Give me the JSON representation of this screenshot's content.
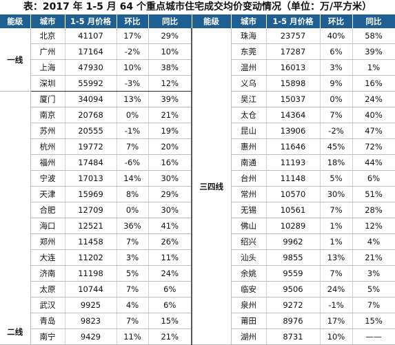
{
  "title": "表：2017 年 1-5 月 64 个重点城市住宅成交均价变动情况（单位：万/平方米）",
  "headers": [
    "能级",
    "城市",
    "1-5 月价格",
    "环比",
    "同比",
    "能级",
    "城市",
    "1-5 月价格",
    "环比",
    "同比"
  ],
  "tiers": {
    "tier1": "一线",
    "tier2": "二线",
    "tier34": "三四线"
  },
  "left_rows": [
    {
      "city": "北京",
      "price": "41107",
      "mom": "17%",
      "yoy": "29%"
    },
    {
      "city": "广州",
      "price": "17164",
      "mom": "-2%",
      "yoy": "10%"
    },
    {
      "city": "上海",
      "price": "47930",
      "mom": "10%",
      "yoy": "38%"
    },
    {
      "city": "深圳",
      "price": "55992",
      "mom": "-3%",
      "yoy": "12%"
    },
    {
      "city": "厦门",
      "price": "34094",
      "mom": "13%",
      "yoy": "39%"
    },
    {
      "city": "南京",
      "price": "20768",
      "mom": "0%",
      "yoy": "21%"
    },
    {
      "city": "苏州",
      "price": "20555",
      "mom": "-1%",
      "yoy": "19%"
    },
    {
      "city": "杭州",
      "price": "19772",
      "mom": "7%",
      "yoy": "20%"
    },
    {
      "city": "福州",
      "price": "17484",
      "mom": "-6%",
      "yoy": "16%"
    },
    {
      "city": "宁波",
      "price": "17013",
      "mom": "14%",
      "yoy": "30%"
    },
    {
      "city": "天津",
      "price": "15969",
      "mom": "8%",
      "yoy": "29%"
    },
    {
      "city": "合肥",
      "price": "12709",
      "mom": "0%",
      "yoy": "30%"
    },
    {
      "city": "海口",
      "price": "12521",
      "mom": "36%",
      "yoy": "41%"
    },
    {
      "city": "郑州",
      "price": "11458",
      "mom": "7%",
      "yoy": "26%"
    },
    {
      "city": "大连",
      "price": "11202",
      "mom": "3%",
      "yoy": "11%"
    },
    {
      "city": "济南",
      "price": "11198",
      "mom": "5%",
      "yoy": "24%"
    },
    {
      "city": "太原",
      "price": "10744",
      "mom": "7%",
      "yoy": "6%"
    },
    {
      "city": "武汉",
      "price": "9925",
      "mom": "4%",
      "yoy": "6%"
    },
    {
      "city": "青岛",
      "price": "9823",
      "mom": "7%",
      "yoy": "15%"
    },
    {
      "city": "南宁",
      "price": "9429",
      "mom": "11%",
      "yoy": "21%"
    }
  ],
  "right_rows": [
    {
      "city": "珠海",
      "price": "23757",
      "mom": "40%",
      "yoy": "58%"
    },
    {
      "city": "东莞",
      "price": "17287",
      "mom": "6%",
      "yoy": "39%"
    },
    {
      "city": "温州",
      "price": "16013",
      "mom": "3%",
      "yoy": "1%"
    },
    {
      "city": "义乌",
      "price": "15898",
      "mom": "9%",
      "yoy": "16%"
    },
    {
      "city": "吴江",
      "price": "15037",
      "mom": "0%",
      "yoy": "24%"
    },
    {
      "city": "太仓",
      "price": "14364",
      "mom": "7%",
      "yoy": "40%"
    },
    {
      "city": "昆山",
      "price": "13906",
      "mom": "-2%",
      "yoy": "47%"
    },
    {
      "city": "惠州",
      "price": "11646",
      "mom": "45%",
      "yoy": "72%"
    },
    {
      "city": "南通",
      "price": "11193",
      "mom": "18%",
      "yoy": "44%"
    },
    {
      "city": "台州",
      "price": "11148",
      "mom": "5%",
      "yoy": "6%"
    },
    {
      "city": "常州",
      "price": "10570",
      "mom": "30%",
      "yoy": "51%"
    },
    {
      "city": "无锡",
      "price": "10561",
      "mom": "7%",
      "yoy": "28%"
    },
    {
      "city": "佛山",
      "price": "10289",
      "mom": "1%",
      "yoy": "12%"
    },
    {
      "city": "绍兴",
      "price": "9962",
      "mom": "1%",
      "yoy": "4%"
    },
    {
      "city": "汕头",
      "price": "9855",
      "mom": "13%",
      "yoy": "21%"
    },
    {
      "city": "余姚",
      "price": "9559",
      "mom": "7%",
      "yoy": "3%"
    },
    {
      "city": "临安",
      "price": "9506",
      "mom": "24%",
      "yoy": "5%"
    },
    {
      "city": "泉州",
      "price": "9272",
      "mom": "-1%",
      "yoy": "7%"
    },
    {
      "city": "莆田",
      "price": "8976",
      "mom": "17%",
      "yoy": "15%"
    },
    {
      "city": "湖州",
      "price": "8731",
      "mom": "10%",
      "yoy": "——"
    }
  ]
}
